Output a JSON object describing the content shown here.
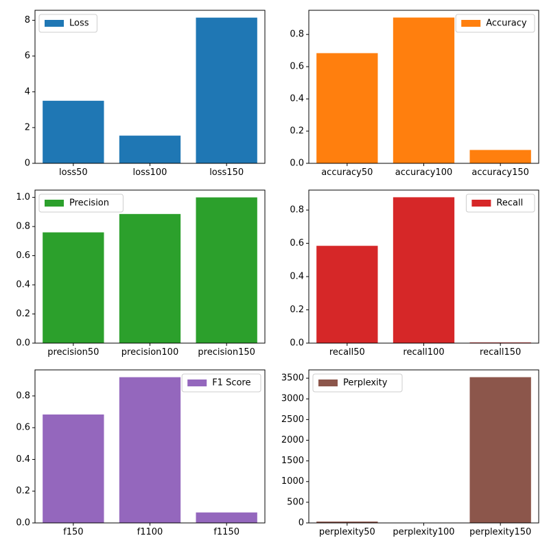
{
  "chart_data": [
    {
      "type": "bar",
      "categories": [
        "loss50",
        "loss100",
        "loss150"
      ],
      "series": [
        {
          "name": "Loss",
          "values": [
            3.5,
            1.55,
            8.15
          ]
        }
      ],
      "color": "#1f77b4",
      "ylim": [
        0,
        8.56
      ],
      "yticks": [
        0,
        2,
        4,
        6,
        8
      ],
      "legend": "top-left",
      "grid": false
    },
    {
      "type": "bar",
      "categories": [
        "accuracy50",
        "accuracy100",
        "accuracy150"
      ],
      "series": [
        {
          "name": "Accuracy",
          "values": [
            0.684,
            0.905,
            0.083
          ]
        }
      ],
      "color": "#ff7f0e",
      "ylim": [
        0,
        0.95
      ],
      "yticks": [
        0.0,
        0.2,
        0.4,
        0.6,
        0.8
      ],
      "legend": "top-right",
      "grid": false
    },
    {
      "type": "bar",
      "categories": [
        "precision50",
        "precision100",
        "precision150"
      ],
      "series": [
        {
          "name": "Precision",
          "values": [
            0.76,
            0.886,
            1.0
          ]
        }
      ],
      "color": "#2ca02c",
      "ylim": [
        0,
        1.05
      ],
      "yticks": [
        0.0,
        0.2,
        0.4,
        0.6,
        0.8,
        1.0
      ],
      "legend": "top-left",
      "grid": false
    },
    {
      "type": "bar",
      "categories": [
        "recall50",
        "recall100",
        "recall150"
      ],
      "series": [
        {
          "name": "Recall",
          "values": [
            0.585,
            0.877,
            0.004
          ]
        }
      ],
      "color": "#d62728",
      "ylim": [
        0,
        0.92
      ],
      "yticks": [
        0.0,
        0.2,
        0.4,
        0.6,
        0.8
      ],
      "legend": "top-right",
      "grid": false
    },
    {
      "type": "bar",
      "categories": [
        "f150",
        "f1100",
        "f1150"
      ],
      "series": [
        {
          "name": "F1 Score",
          "values": [
            0.683,
            0.918,
            0.066
          ]
        }
      ],
      "color": "#9467bd",
      "ylim": [
        0,
        0.964
      ],
      "yticks": [
        0.0,
        0.2,
        0.4,
        0.6,
        0.8
      ],
      "legend": "top-right",
      "grid": false
    },
    {
      "type": "bar",
      "categories": [
        "perplexity50",
        "perplexity100",
        "perplexity150"
      ],
      "series": [
        {
          "name": "Perplexity",
          "values": [
            33,
            5,
            3525
          ]
        }
      ],
      "color": "#8c564b",
      "ylim": [
        0,
        3701
      ],
      "yticks": [
        0,
        500,
        1000,
        1500,
        2000,
        2500,
        3000,
        3500
      ],
      "legend": "top-left",
      "grid": false
    }
  ]
}
